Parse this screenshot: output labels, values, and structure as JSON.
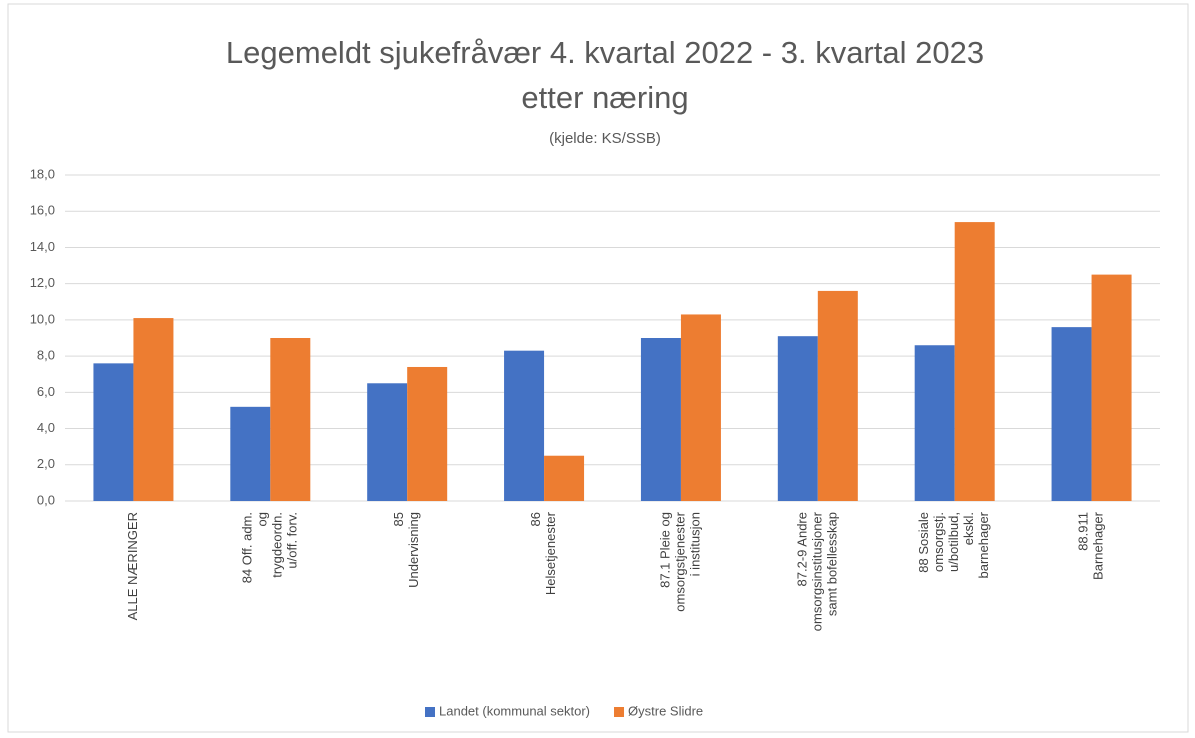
{
  "chart_data": {
    "type": "bar",
    "title": "Legemeldt sjukefråvær 4. kvartal 2022 - 3. kvartal 2023",
    "subtitle": "etter næring",
    "source": "(kjelde: KS/SSB)",
    "categories": [
      [
        "ALLE NÆRINGER"
      ],
      [
        "84 Off. adm.",
        "og",
        "trygdeordn.",
        "u/off. forv."
      ],
      [
        "85",
        "Undervisning"
      ],
      [
        "86",
        "Helsetjenester"
      ],
      [
        "87.1 Pleie og",
        "omsorgstjenester",
        "i institusjon"
      ],
      [
        "87.2-9 Andre",
        "omsorgsinstitusjoner",
        "samt bofellesskap"
      ],
      [
        "88 Sosiale",
        "omsorgstj.",
        "u/botilbud,",
        "ekskl.",
        "barnehager"
      ],
      [
        "88.911",
        "Barnehager"
      ]
    ],
    "series": [
      {
        "name": "Landet (kommunal sektor)",
        "color": "#4472c4",
        "values": [
          7.6,
          5.2,
          6.5,
          8.3,
          9.0,
          9.1,
          8.6,
          9.6
        ]
      },
      {
        "name": "Øystre Slidre",
        "color": "#ed7d31",
        "values": [
          10.1,
          9.0,
          7.4,
          2.5,
          10.3,
          11.6,
          15.4,
          12.5
        ]
      }
    ],
    "ylim": [
      0,
      18
    ],
    "yticks": [
      {
        "value": 0,
        "label": "0,0"
      },
      {
        "value": 2,
        "label": "2,0"
      },
      {
        "value": 4,
        "label": "4,0"
      },
      {
        "value": 6,
        "label": "6,0"
      },
      {
        "value": 8,
        "label": "8,0"
      },
      {
        "value": 10,
        "label": "10,0"
      },
      {
        "value": 12,
        "label": "12,0"
      },
      {
        "value": 14,
        "label": "14,0"
      },
      {
        "value": 16,
        "label": "16,0"
      },
      {
        "value": 18,
        "label": "18,0"
      }
    ],
    "grid": true,
    "legend": "bottom"
  }
}
